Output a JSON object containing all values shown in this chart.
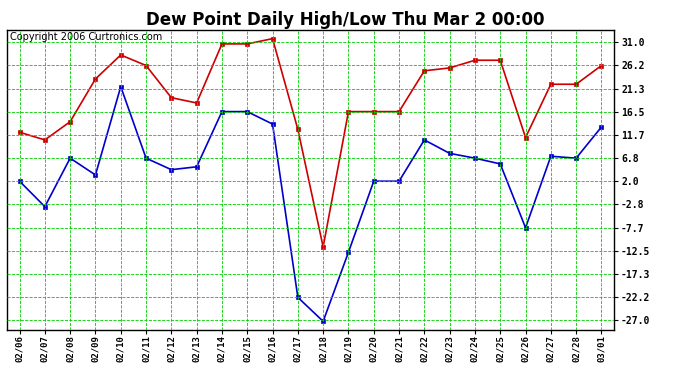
{
  "title": "Dew Point Daily High/Low Thu Mar 2 00:00",
  "copyright": "Copyright 2006 Curtronics.com",
  "dates": [
    "02/06",
    "02/07",
    "02/08",
    "02/09",
    "02/10",
    "02/11",
    "02/12",
    "02/13",
    "02/14",
    "02/15",
    "02/16",
    "02/17",
    "02/18",
    "02/19",
    "02/20",
    "02/21",
    "02/22",
    "02/23",
    "02/24",
    "02/25",
    "02/26",
    "02/27",
    "02/28",
    "03/01"
  ],
  "high": [
    12.2,
    10.6,
    14.4,
    23.3,
    28.3,
    26.1,
    19.4,
    18.3,
    30.6,
    30.6,
    31.7,
    12.8,
    -11.7,
    16.5,
    16.5,
    16.5,
    25.0,
    25.6,
    27.2,
    27.2,
    11.1,
    22.2,
    22.2,
    26.1
  ],
  "low": [
    2.0,
    -3.3,
    6.8,
    3.3,
    21.7,
    6.8,
    4.4,
    5.0,
    16.5,
    16.5,
    13.9,
    -22.2,
    -27.2,
    -12.8,
    2.0,
    2.0,
    10.6,
    7.8,
    6.8,
    5.6,
    -7.7,
    7.2,
    6.8,
    13.3
  ],
  "y_ticks": [
    31.0,
    26.2,
    21.3,
    16.5,
    11.7,
    6.8,
    2.0,
    -2.8,
    -7.7,
    -12.5,
    -17.3,
    -22.2,
    -27.0
  ],
  "ylim": [
    -29.0,
    33.5
  ],
  "bg_color": "#ffffff",
  "plot_bg_color": "#ffffff",
  "grid_color": "#00cc00",
  "high_color": "#cc0000",
  "low_color": "#0000cc",
  "title_fontsize": 12,
  "copyright_fontsize": 7
}
